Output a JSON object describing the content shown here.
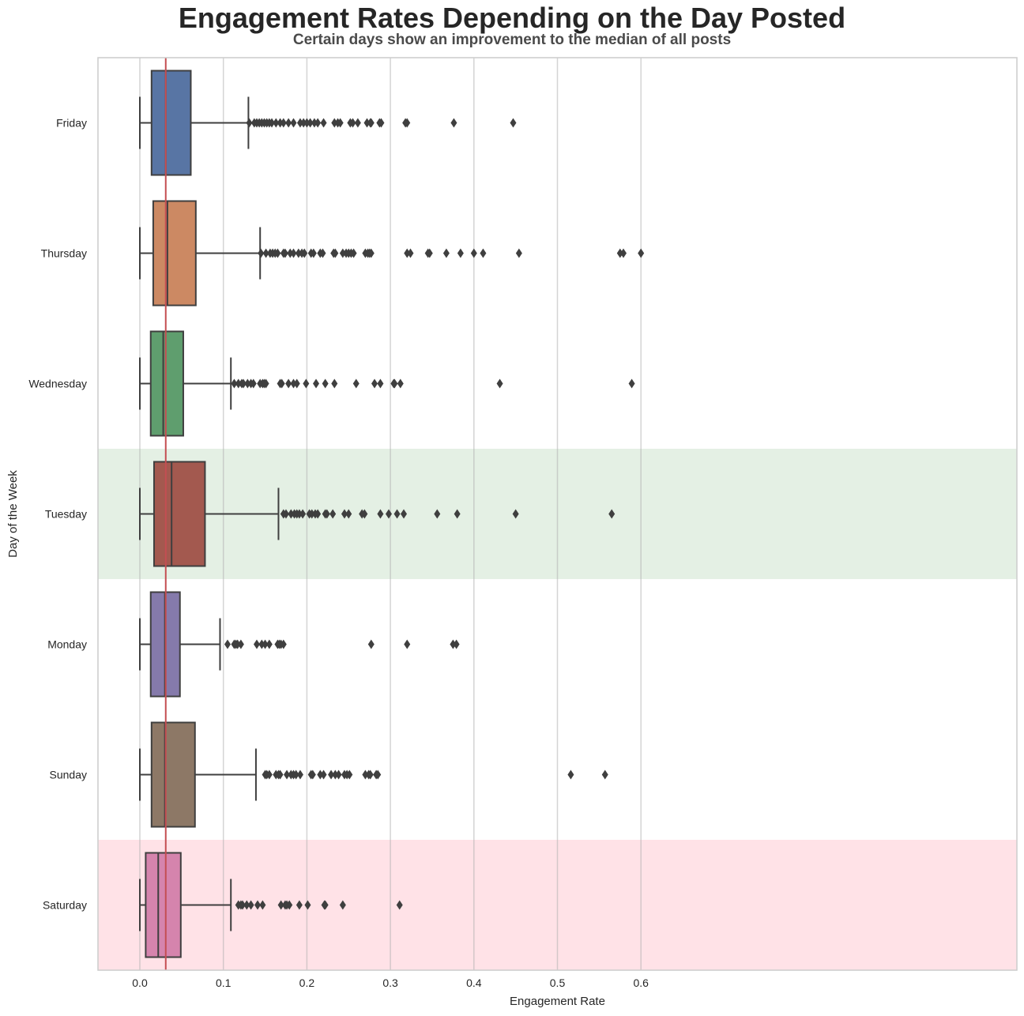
{
  "chart_data": {
    "type": "box",
    "title": "Engagement Rates Depending on the Day Posted",
    "subtitle": "Certain days show an improvement to the median of all posts",
    "xlabel": "Engagement Rate",
    "ylabel": "Day of the Week",
    "xlim": [
      -0.03,
      0.63
    ],
    "xticks": [
      "0.0",
      "0.1",
      "0.2",
      "0.3",
      "0.4",
      "0.5",
      "0.6"
    ],
    "xtick_values": [
      0.0,
      0.1,
      0.2,
      0.3,
      0.4,
      0.5,
      0.6
    ],
    "grid": "vertical",
    "reference_line": {
      "value": 0.031,
      "color": "#c44e52"
    },
    "highlight_bands": [
      {
        "category": "Tuesday",
        "color": "#4c9a4c",
        "opacity": 0.15
      },
      {
        "category": "Saturday",
        "color": "#ff4d6a",
        "opacity": 0.16
      }
    ],
    "categories": [
      "Friday",
      "Thursday",
      "Wednesday",
      "Tuesday",
      "Monday",
      "Sunday",
      "Saturday"
    ],
    "series": [
      {
        "category": "Friday",
        "color": "#5875a4",
        "whisker_low": 0.0,
        "q1": 0.014,
        "median": 0.031,
        "q3": 0.061,
        "whisker_high": 0.13,
        "outliers": [
          0.131,
          0.137,
          0.14,
          0.143,
          0.146,
          0.149,
          0.152,
          0.155,
          0.158,
          0.163,
          0.168,
          0.172,
          0.178,
          0.184,
          0.192,
          0.196,
          0.2,
          0.204,
          0.209,
          0.213,
          0.22,
          0.233,
          0.237,
          0.24,
          0.252,
          0.255,
          0.261,
          0.272,
          0.276,
          0.277,
          0.287,
          0.289,
          0.318,
          0.32,
          0.376,
          0.447
        ]
      },
      {
        "category": "Thursday",
        "color": "#cc8963",
        "whisker_low": 0.0,
        "q1": 0.016,
        "median": 0.033,
        "q3": 0.067,
        "whisker_high": 0.144,
        "outliers": [
          0.145,
          0.151,
          0.156,
          0.159,
          0.162,
          0.165,
          0.172,
          0.174,
          0.18,
          0.184,
          0.19,
          0.194,
          0.197,
          0.205,
          0.208,
          0.216,
          0.219,
          0.232,
          0.234,
          0.243,
          0.247,
          0.25,
          0.253,
          0.256,
          0.27,
          0.273,
          0.275,
          0.277,
          0.32,
          0.324,
          0.345,
          0.347,
          0.367,
          0.384,
          0.4,
          0.411,
          0.454,
          0.575,
          0.579,
          0.6
        ]
      },
      {
        "category": "Wednesday",
        "color": "#5f9e6e",
        "whisker_low": 0.0,
        "q1": 0.013,
        "median": 0.028,
        "q3": 0.052,
        "whisker_high": 0.109,
        "outliers": [
          0.113,
          0.118,
          0.122,
          0.124,
          0.129,
          0.133,
          0.136,
          0.144,
          0.147,
          0.149,
          0.151,
          0.168,
          0.17,
          0.178,
          0.184,
          0.188,
          0.199,
          0.211,
          0.222,
          0.233,
          0.259,
          0.281,
          0.288,
          0.304,
          0.305,
          0.312,
          0.431,
          0.589
        ]
      },
      {
        "category": "Tuesday",
        "color": "#a3594f",
        "whisker_low": 0.0,
        "q1": 0.017,
        "median": 0.038,
        "q3": 0.078,
        "whisker_high": 0.166,
        "outliers": [
          0.172,
          0.175,
          0.181,
          0.185,
          0.188,
          0.191,
          0.195,
          0.203,
          0.206,
          0.21,
          0.213,
          0.222,
          0.224,
          0.231,
          0.245,
          0.25,
          0.266,
          0.269,
          0.288,
          0.298,
          0.308,
          0.316,
          0.356,
          0.38,
          0.45,
          0.565
        ]
      },
      {
        "category": "Monday",
        "color": "#857aab",
        "whisker_low": 0.0,
        "q1": 0.013,
        "median": 0.03,
        "q3": 0.048,
        "whisker_high": 0.096,
        "outliers": [
          0.105,
          0.113,
          0.115,
          0.117,
          0.121,
          0.14,
          0.146,
          0.15,
          0.155,
          0.165,
          0.167,
          0.169,
          0.172,
          0.277,
          0.32,
          0.375,
          0.379
        ]
      },
      {
        "category": "Sunday",
        "color": "#8d7866",
        "whisker_low": 0.0,
        "q1": 0.014,
        "median": 0.03,
        "q3": 0.066,
        "whisker_high": 0.139,
        "outliers": [
          0.15,
          0.152,
          0.155,
          0.163,
          0.166,
          0.168,
          0.176,
          0.181,
          0.184,
          0.187,
          0.192,
          0.205,
          0.207,
          0.216,
          0.22,
          0.229,
          0.234,
          0.238,
          0.245,
          0.248,
          0.251,
          0.27,
          0.274,
          0.276,
          0.283,
          0.285,
          0.516,
          0.557
        ]
      },
      {
        "category": "Saturday",
        "color": "#d584ad",
        "whisker_low": 0.0,
        "q1": 0.007,
        "median": 0.022,
        "q3": 0.049,
        "whisker_high": 0.109,
        "outliers": [
          0.118,
          0.121,
          0.123,
          0.128,
          0.133,
          0.141,
          0.147,
          0.169,
          0.174,
          0.176,
          0.179,
          0.191,
          0.201,
          0.221,
          0.222,
          0.243,
          0.311
        ]
      }
    ]
  }
}
